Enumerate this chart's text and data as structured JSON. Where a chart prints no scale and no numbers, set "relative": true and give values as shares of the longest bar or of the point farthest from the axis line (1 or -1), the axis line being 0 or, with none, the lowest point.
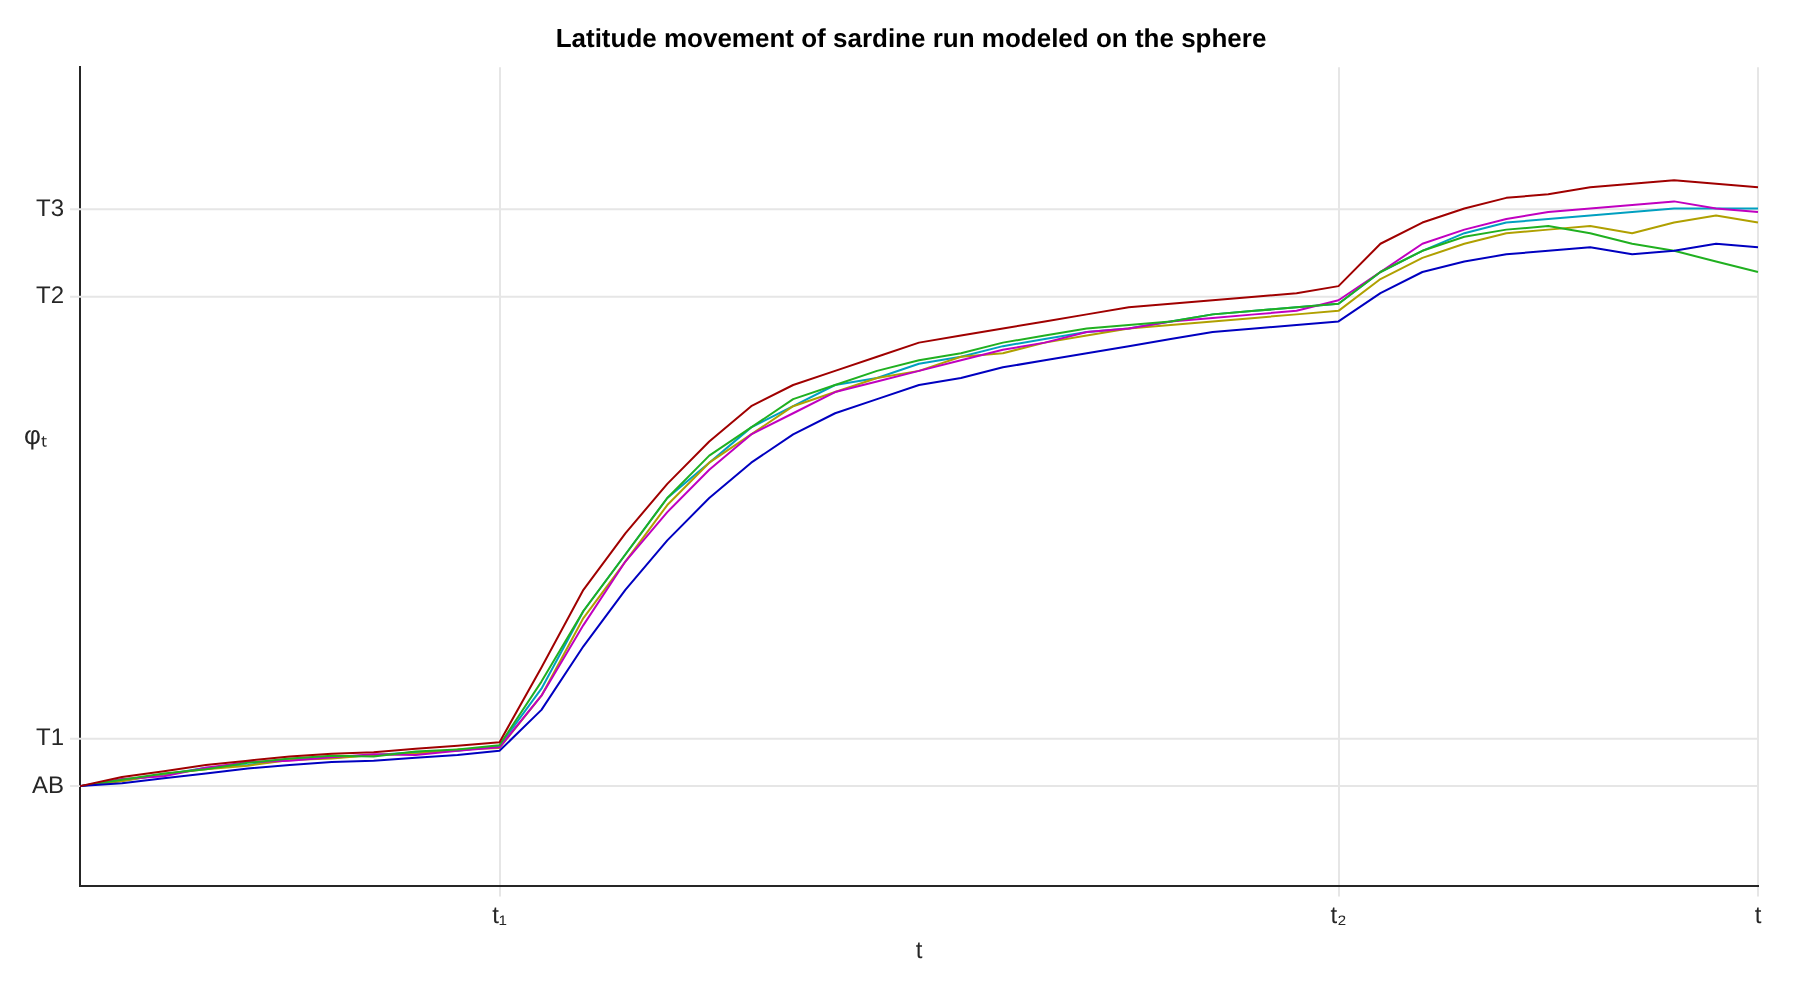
{
  "chart_data": {
    "type": "line",
    "title": "Latitude movement of sardine run modeled on the sphere",
    "xlabel": "t",
    "ylabel": "φₜ",
    "relative": true,
    "categories": [
      null,
      null,
      null,
      null,
      null,
      null,
      null,
      null,
      null,
      null,
      "t₁",
      null,
      null,
      null,
      null,
      null,
      null,
      null,
      null,
      null,
      null,
      null,
      null,
      null,
      null,
      null,
      null,
      null,
      null,
      null,
      "t₂",
      null,
      null,
      null,
      null,
      null,
      null,
      null,
      null,
      null,
      "t"
    ],
    "series": [
      {
        "color": "#a00000",
        "values": [
          0.142,
          0.155,
          0.163,
          0.172,
          0.178,
          0.184,
          0.188,
          0.19,
          0.195,
          0.199,
          0.204,
          0.31,
          0.42,
          0.5,
          0.57,
          0.63,
          0.68,
          0.71,
          0.73,
          0.75,
          0.77,
          0.78,
          0.79,
          0.8,
          0.81,
          0.82,
          0.825,
          0.83,
          0.835,
          0.84,
          0.85,
          0.91,
          0.94,
          0.96,
          0.975,
          0.98,
          0.99,
          0.995,
          1.0,
          0.995,
          0.99
        ]
      },
      {
        "color": "#0000c0",
        "values": [
          0.142,
          0.146,
          0.153,
          0.16,
          0.167,
          0.172,
          0.176,
          0.178,
          0.182,
          0.186,
          0.192,
          0.25,
          0.34,
          0.42,
          0.49,
          0.55,
          0.6,
          0.64,
          0.67,
          0.69,
          0.71,
          0.72,
          0.735,
          0.745,
          0.755,
          0.765,
          0.775,
          0.785,
          0.79,
          0.795,
          0.8,
          0.84,
          0.87,
          0.885,
          0.895,
          0.9,
          0.905,
          0.895,
          0.9,
          0.91,
          0.905
        ]
      },
      {
        "color": "#20b020",
        "values": [
          0.142,
          0.151,
          0.16,
          0.166,
          0.175,
          0.181,
          0.185,
          0.184,
          0.191,
          0.194,
          0.2,
          0.29,
          0.39,
          0.47,
          0.55,
          0.61,
          0.65,
          0.69,
          0.71,
          0.73,
          0.745,
          0.755,
          0.77,
          0.78,
          0.79,
          0.795,
          0.8,
          0.81,
          0.815,
          0.82,
          0.825,
          0.87,
          0.9,
          0.92,
          0.93,
          0.935,
          0.925,
          0.91,
          0.9,
          0.885,
          0.87
        ]
      },
      {
        "color": "#c000c0",
        "values": [
          0.142,
          0.152,
          0.156,
          0.168,
          0.176,
          0.178,
          0.183,
          0.187,
          0.186,
          0.192,
          0.197,
          0.27,
          0.37,
          0.46,
          0.53,
          0.59,
          0.64,
          0.67,
          0.7,
          0.715,
          0.73,
          0.745,
          0.76,
          0.77,
          0.785,
          0.79,
          0.8,
          0.805,
          0.81,
          0.815,
          0.83,
          0.87,
          0.91,
          0.93,
          0.945,
          0.955,
          0.96,
          0.965,
          0.97,
          0.96,
          0.955
        ]
      },
      {
        "color": "#b0a000",
        "values": [
          0.142,
          0.149,
          0.159,
          0.166,
          0.171,
          0.179,
          0.181,
          0.186,
          0.188,
          0.194,
          0.196,
          0.27,
          0.38,
          0.46,
          0.54,
          0.6,
          0.64,
          0.68,
          0.7,
          0.72,
          0.73,
          0.75,
          0.755,
          0.77,
          0.78,
          0.79,
          0.795,
          0.8,
          0.805,
          0.81,
          0.815,
          0.86,
          0.89,
          0.91,
          0.925,
          0.93,
          0.935,
          0.925,
          0.94,
          0.95,
          0.94
        ]
      },
      {
        "color": "#00a0c0",
        "values": [
          0.142,
          0.15,
          0.158,
          0.168,
          0.172,
          0.18,
          0.182,
          0.186,
          0.19,
          0.192,
          0.199,
          0.28,
          0.39,
          0.47,
          0.55,
          0.6,
          0.65,
          0.68,
          0.71,
          0.72,
          0.74,
          0.75,
          0.765,
          0.775,
          0.785,
          0.79,
          0.8,
          0.81,
          0.815,
          0.82,
          0.825,
          0.87,
          0.9,
          0.925,
          0.94,
          0.945,
          0.95,
          0.955,
          0.96,
          0.96,
          0.96
        ]
      }
    ],
    "ref_lines": [
      {
        "axis": "y",
        "value": 0.142,
        "label": "AB",
        "color": "#e6e6e6"
      },
      {
        "axis": "y",
        "value": 0.209,
        "label": "T1",
        "color": "#e6e6e6"
      },
      {
        "axis": "y",
        "value": 0.835,
        "label": "T2",
        "color": "#e6e6e6"
      },
      {
        "axis": "y",
        "value": 0.959,
        "label": "T3",
        "color": "#e6e6e6"
      }
    ],
    "grid": "x",
    "legend": false,
    "marker": "none",
    "line_style": "solid"
  }
}
